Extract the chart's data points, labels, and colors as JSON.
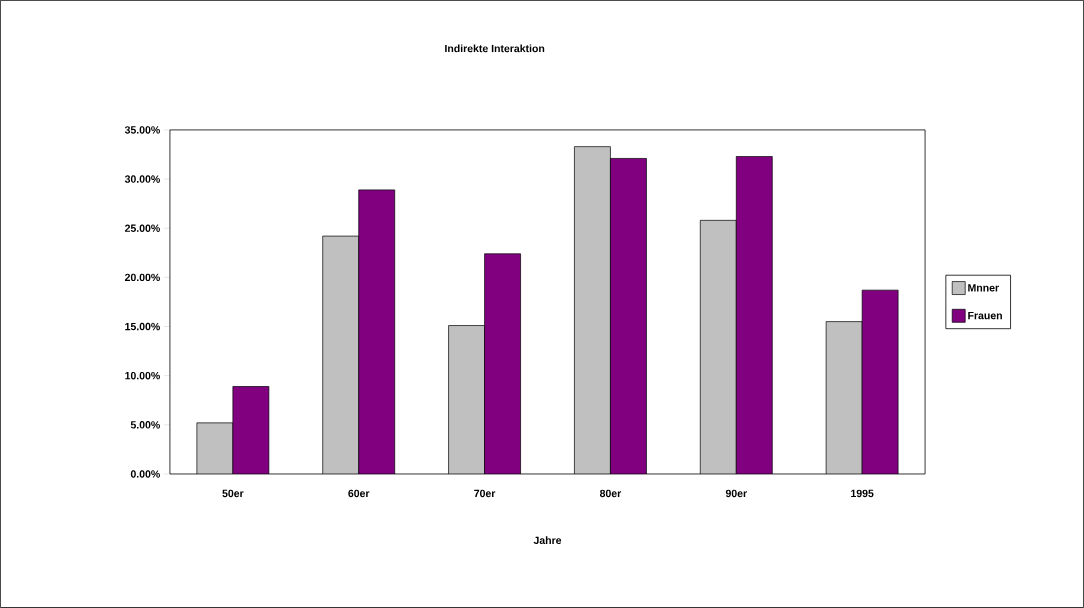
{
  "chart_data": {
    "type": "bar",
    "title": "Indirekte Interaktion",
    "xlabel": "Jahre",
    "categories": [
      "50er",
      "60er",
      "70er",
      "80er",
      "90er",
      "1995"
    ],
    "series": [
      {
        "name": "Mnner",
        "color": "#c0c0c0",
        "values": [
          5.2,
          24.2,
          15.1,
          33.3,
          25.8,
          15.5
        ]
      },
      {
        "name": "Frauen",
        "color": "#800080",
        "values": [
          8.9,
          28.9,
          22.4,
          32.1,
          32.3,
          18.7
        ]
      }
    ],
    "ylim": [
      0,
      35
    ],
    "yticks": [
      {
        "value": 0,
        "label": "0.00%"
      },
      {
        "value": 5,
        "label": "5.00%"
      },
      {
        "value": 10,
        "label": "10.00%"
      },
      {
        "value": 15,
        "label": "15.00%"
      },
      {
        "value": 20,
        "label": "20.00%"
      },
      {
        "value": 25,
        "label": "25.00%"
      },
      {
        "value": 30,
        "label": "30.00%"
      },
      {
        "value": 35,
        "label": "35.00%"
      }
    ],
    "grid": false,
    "legend": "right"
  }
}
